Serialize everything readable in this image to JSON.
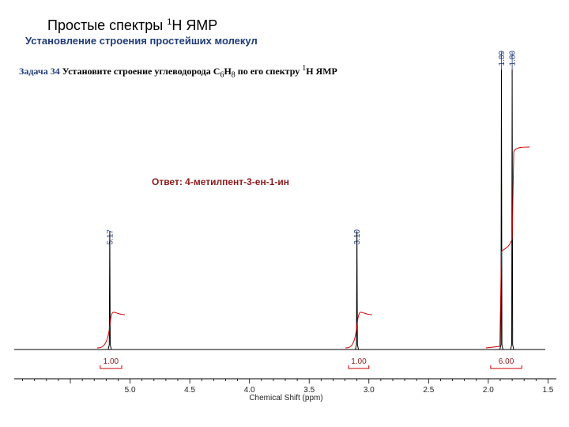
{
  "header": {
    "title_main": "Простые спектры ",
    "title_sup": "1",
    "title_tail": "Н ЯМР",
    "subtitle": "Установление строения простейших молекул"
  },
  "task": {
    "label": "Задача 34",
    "text_before": " Установите строение углеводорода ",
    "formula_c": "C",
    "formula_c_sub": "6",
    "formula_h": "H",
    "formula_h_sub": "8",
    "text_after": "  по его спектру ",
    "nmr_sup": "1",
    "nmr_tail": "H ЯМР"
  },
  "answer": "Ответ: 4-метилпент-3-ен-1-ин",
  "chart_data": {
    "type": "line",
    "xlabel": "Chemical Shift (ppm)",
    "xlim": [
      5.97,
      1.43
    ],
    "x_reversed": true,
    "xticks": [
      5.0,
      4.5,
      4.0,
      3.5,
      3.0,
      2.5,
      2.0,
      1.5
    ],
    "xtick_labels": [
      "5.0",
      "4.5",
      "4.0",
      "3.5",
      "3.0",
      "2.5",
      "2.0",
      "1.5"
    ],
    "peaks": [
      {
        "shift": 5.17,
        "label": "5.17",
        "relative_height": 0.42
      },
      {
        "shift": 3.1,
        "label": "3.10",
        "relative_height": 0.42
      },
      {
        "shift": 1.89,
        "label": "1.89",
        "relative_height": 1.0
      },
      {
        "shift": 1.8,
        "label": "1.80",
        "relative_height": 1.0
      }
    ],
    "integrals": [
      {
        "from": 5.25,
        "to": 5.07,
        "value": "1.00"
      },
      {
        "from": 3.17,
        "to": 3.0,
        "value": "1.00"
      },
      {
        "from": 1.98,
        "to": 1.72,
        "value": "6.00"
      }
    ],
    "colors": {
      "spectrum": "#000000",
      "integral": "#cc0000",
      "peak_label": "#1f3a7a"
    }
  }
}
